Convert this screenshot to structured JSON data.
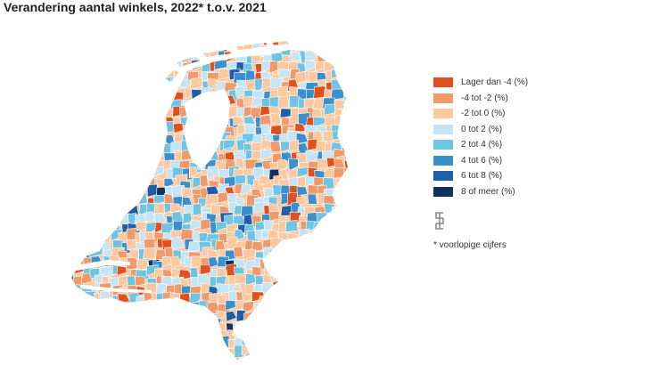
{
  "title": "Verandering aantal winkels, 2022* t.o.v. 2021",
  "legend": [
    {
      "label": "Lager dan -4 (%)",
      "color": "#e0501d"
    },
    {
      "label": "-4 tot -2 (%)",
      "color": "#f0996a"
    },
    {
      "label": "-2 tot 0 (%)",
      "color": "#fbc8a0"
    },
    {
      "label": "0 tot 2 (%)",
      "color": "#c5e4f5"
    },
    {
      "label": "2 tot 4 (%)",
      "color": "#6fc4e3"
    },
    {
      "label": "4 tot 6 (%)",
      "color": "#3a8fcc"
    },
    {
      "label": "6 tot 8 (%)",
      "color": "#1f5fa8"
    },
    {
      "label": "8 of meer (%)",
      "color": "#13305f"
    }
  ],
  "footnote": "* voorlopige cijfers",
  "logo": "cbs-logo"
}
